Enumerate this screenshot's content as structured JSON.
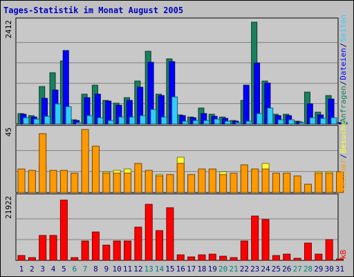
{
  "title": "Tages-Statistik im Monat August 2005",
  "colors": {
    "background": "#c0c0c0",
    "panel": "#c8c8c8",
    "title": "#0000c0",
    "weekday_label": "#000080",
    "weekend_label": "#008080",
    "anfragen": "#19805f",
    "dateien": "#0000ff",
    "seiten": "#33ccff",
    "besuche": "#ffff33",
    "rechner": "#ff9900",
    "kb": "#ff0000"
  },
  "chart_data": [
    {
      "type": "bar",
      "panel": "top",
      "ymax_label": "2412",
      "ylim": [
        0,
        2412
      ],
      "categories": [
        "1",
        "2",
        "3",
        "4",
        "5",
        "6",
        "7",
        "8",
        "9",
        "10",
        "11",
        "12",
        "13",
        "14",
        "15",
        "16",
        "17",
        "18",
        "19",
        "20",
        "21",
        "22",
        "23",
        "24",
        "25",
        "26",
        "27",
        "28",
        "29",
        "30",
        "31"
      ],
      "weekend_days": [
        "6",
        "7",
        "13",
        "14",
        "20",
        "21",
        "27",
        "28"
      ],
      "right_labels": [
        {
          "text": "Anfragen",
          "color_key": "anfragen"
        },
        {
          "text": "/",
          "color_key": "weekday_label"
        },
        {
          "text": "Dateien",
          "color_key": "dateien"
        },
        {
          "text": "/",
          "color_key": "weekday_label"
        },
        {
          "text": "Seiten",
          "color_key": "seiten"
        }
      ],
      "series": [
        {
          "name": "Anfragen",
          "color_key": "anfragen",
          "values": [
            245,
            200,
            880,
            1210,
            1500,
            100,
            710,
            920,
            560,
            490,
            630,
            1020,
            1730,
            700,
            1550,
            220,
            170,
            370,
            230,
            160,
            90,
            550,
            2412,
            1020,
            230,
            230,
            70,
            750,
            280,
            680,
            40
          ]
        },
        {
          "name": "Dateien",
          "color_key": "dateien",
          "values": [
            225,
            160,
            600,
            800,
            1740,
            80,
            630,
            700,
            540,
            440,
            560,
            870,
            1460,
            680,
            1480,
            200,
            140,
            240,
            180,
            130,
            70,
            920,
            1440,
            960,
            190,
            200,
            50,
            480,
            220,
            590,
            30
          ]
        },
        {
          "name": "Seiten",
          "color_key": "seiten",
          "values": [
            150,
            120,
            180,
            470,
            410,
            40,
            190,
            150,
            90,
            160,
            160,
            200,
            350,
            170,
            640,
            60,
            80,
            80,
            110,
            60,
            40,
            70,
            250,
            370,
            100,
            100,
            20,
            140,
            130,
            140,
            20
          ]
        }
      ]
    },
    {
      "type": "bar",
      "panel": "middle",
      "ymax_label": "45",
      "ylim": [
        0,
        45
      ],
      "categories": [
        "1",
        "2",
        "3",
        "4",
        "5",
        "6",
        "7",
        "8",
        "9",
        "10",
        "11",
        "12",
        "13",
        "14",
        "15",
        "16",
        "17",
        "18",
        "19",
        "20",
        "21",
        "22",
        "23",
        "24",
        "25",
        "26",
        "27",
        "28",
        "29",
        "30",
        "31"
      ],
      "right_labels": [
        {
          "text": "Rechner",
          "color_key": "rechner"
        },
        {
          "text": "/",
          "color_key": "weekday_label"
        },
        {
          "text": "Besuche",
          "color_key": "besuche"
        }
      ],
      "series": [
        {
          "name": "Besuche",
          "color_key": "besuche",
          "values": [
            15,
            14,
            20,
            15,
            14,
            14,
            30,
            33,
            15,
            16,
            17,
            13,
            15,
            13,
            12,
            25,
            13,
            17,
            17,
            15,
            14,
            16,
            17,
            21,
            14,
            14,
            7,
            5,
            15,
            15,
            15
          ]
        },
        {
          "name": "Rechner",
          "color_key": "rechner",
          "values": [
            17,
            16,
            42,
            16,
            16,
            14,
            15,
            16,
            14,
            14,
            14,
            13,
            16,
            12,
            13,
            14,
            13,
            17,
            17,
            13,
            14,
            16,
            17,
            17,
            14,
            14,
            12,
            6,
            14,
            14,
            15
          ]
        },
        {
          "name": "Rechner (hervorgehoben)",
          "color_key": "rechner",
          "values": [
            null,
            null,
            null,
            null,
            null,
            null,
            45,
            33,
            null,
            null,
            null,
            21,
            null,
            null,
            null,
            21,
            null,
            null,
            null,
            null,
            null,
            20,
            null,
            null,
            null,
            null,
            null,
            null,
            null,
            null,
            null
          ]
        }
      ]
    },
    {
      "type": "bar",
      "panel": "bottom",
      "ymax_label": "21922",
      "ylim": [
        0,
        21922
      ],
      "categories": [
        "1",
        "2",
        "3",
        "4",
        "5",
        "6",
        "7",
        "8",
        "9",
        "10",
        "11",
        "12",
        "13",
        "14",
        "15",
        "16",
        "17",
        "18",
        "19",
        "20",
        "21",
        "22",
        "23",
        "24",
        "25",
        "26",
        "27",
        "28",
        "29",
        "30",
        "31"
      ],
      "right_labels": [
        {
          "text": "kB",
          "color_key": "kb"
        }
      ],
      "series": [
        {
          "name": "kB",
          "color_key": "kb",
          "values": [
            1700,
            1000,
            8700,
            8700,
            21300,
            1000,
            6800,
            10100,
            5400,
            6800,
            6800,
            11600,
            19700,
            10400,
            18500,
            2000,
            1200,
            1900,
            2200,
            1400,
            1000,
            6800,
            15500,
            14300,
            1800,
            2100,
            700,
            6000,
            2200,
            7300,
            0
          ]
        }
      ]
    }
  ]
}
